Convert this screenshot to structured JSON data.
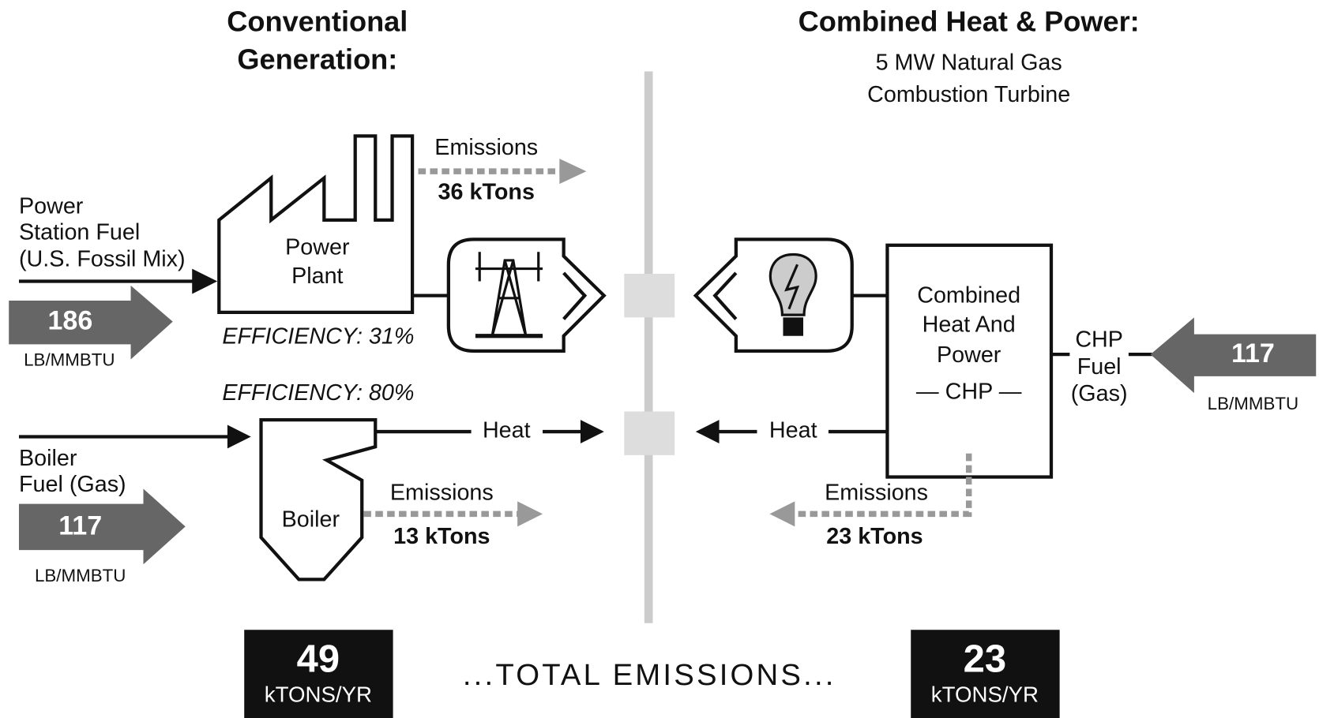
{
  "left": {
    "title": [
      "Conventional",
      "Generation:"
    ],
    "power_fuel": {
      "label": [
        "Power",
        "Station Fuel",
        "(U.S. Fossil Mix)"
      ],
      "value": "186",
      "unit": "LB/MMBTU"
    },
    "power_plant": [
      "Power",
      "Plant"
    ],
    "power_efficiency": "EFFICIENCY: 31%",
    "power_emissions": {
      "label": "Emissions",
      "value": "36 kTons"
    },
    "boiler_efficiency": "EFFICIENCY: 80%",
    "boiler_fuel": {
      "label": [
        "Boiler",
        "Fuel (Gas)"
      ],
      "value": "117",
      "unit": "LB/MMBTU"
    },
    "boiler": "Boiler",
    "heat": "Heat",
    "boiler_emissions": {
      "label": "Emissions",
      "value": "13 kTons"
    }
  },
  "right": {
    "title": "Combined Heat & Power:",
    "subtitle": [
      "5 MW Natural Gas",
      "Combustion Turbine"
    ],
    "chp_box": [
      "Combined",
      "Heat And",
      "Power",
      "— CHP —"
    ],
    "chp_fuel": {
      "label": [
        "CHP",
        "Fuel",
        "(Gas)"
      ],
      "value": "117",
      "unit": "LB/MMBTU"
    },
    "heat": "Heat",
    "emissions": {
      "label": "Emissions",
      "value": "23 kTons"
    }
  },
  "totals": {
    "left": {
      "value": "49",
      "unit": "kTONS/YR"
    },
    "caption": "...TOTAL EMISSIONS...",
    "right": {
      "value": "23",
      "unit": "kTONS/YR"
    }
  }
}
